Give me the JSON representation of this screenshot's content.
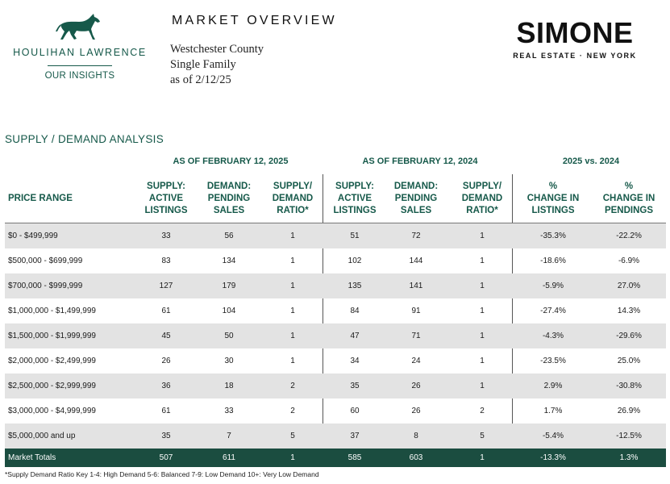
{
  "brand_left": {
    "name": "HOULIHAN LAWRENCE",
    "tagline": "OUR INSIGHTS"
  },
  "brand_right": {
    "name": "SIMONE",
    "subtitle": "REAL ESTATE · NEW YORK"
  },
  "header": {
    "title": "MARKET OVERVIEW",
    "county": "Westchester County",
    "property_type": "Single Family",
    "as_of": "as of  2/12/25"
  },
  "section_title": "SUPPLY / DEMAND ANALYSIS",
  "groups": {
    "current": "AS OF FEBRUARY 12, 2025",
    "prior": "AS OF FEBRUARY 12, 2024",
    "compare": "2025 vs. 2024"
  },
  "columns": {
    "range": "PRICE RANGE",
    "supply": "SUPPLY:\nACTIVE\nLISTINGS",
    "demand": "DEMAND:\nPENDING\nSALES",
    "ratio": "SUPPLY/\nDEMAND\nRATIO*",
    "supply_prior": "SUPPLY:\nACTIVE\nLISTINGS",
    "demand_prior": "DEMAND:\nPENDING\nSALES",
    "ratio_prior": "SUPPLY/\nDEMAND\nRATIO*",
    "chg_listings": "%\nCHANGE IN\nLISTINGS",
    "chg_pendings": "%\nCHANGE IN\nPENDINGS"
  },
  "rows": [
    {
      "range": "$0 - $499,999",
      "s25": "33",
      "d25": "56",
      "r25": "1",
      "s24": "51",
      "d24": "72",
      "r24": "1",
      "cl": "-35.3%",
      "cp": "-22.2%"
    },
    {
      "range": "$500,000 - $699,999",
      "s25": "83",
      "d25": "134",
      "r25": "1",
      "s24": "102",
      "d24": "144",
      "r24": "1",
      "cl": "-18.6%",
      "cp": "-6.9%"
    },
    {
      "range": "$700,000 - $999,999",
      "s25": "127",
      "d25": "179",
      "r25": "1",
      "s24": "135",
      "d24": "141",
      "r24": "1",
      "cl": "-5.9%",
      "cp": "27.0%"
    },
    {
      "range": "$1,000,000 - $1,499,999",
      "s25": "61",
      "d25": "104",
      "r25": "1",
      "s24": "84",
      "d24": "91",
      "r24": "1",
      "cl": "-27.4%",
      "cp": "14.3%"
    },
    {
      "range": "$1,500,000 - $1,999,999",
      "s25": "45",
      "d25": "50",
      "r25": "1",
      "s24": "47",
      "d24": "71",
      "r24": "1",
      "cl": "-4.3%",
      "cp": "-29.6%"
    },
    {
      "range": "$2,000,000 - $2,499,999",
      "s25": "26",
      "d25": "30",
      "r25": "1",
      "s24": "34",
      "d24": "24",
      "r24": "1",
      "cl": "-23.5%",
      "cp": "25.0%"
    },
    {
      "range": "$2,500,000 - $2,999,999",
      "s25": "36",
      "d25": "18",
      "r25": "2",
      "s24": "35",
      "d24": "26",
      "r24": "1",
      "cl": "2.9%",
      "cp": "-30.8%"
    },
    {
      "range": "$3,000,000 - $4,999,999",
      "s25": "61",
      "d25": "33",
      "r25": "2",
      "s24": "60",
      "d24": "26",
      "r24": "2",
      "cl": "1.7%",
      "cp": "26.9%"
    },
    {
      "range": "$5,000,000 and up",
      "s25": "35",
      "d25": "7",
      "r25": "5",
      "s24": "37",
      "d24": "8",
      "r24": "5",
      "cl": "-5.4%",
      "cp": "-12.5%"
    }
  ],
  "totals": {
    "range": "Market Totals",
    "s25": "507",
    "d25": "611",
    "r25": "1",
    "s24": "585",
    "d24": "603",
    "r24": "1",
    "cl": "-13.3%",
    "cp": "1.3%"
  },
  "footnote": "*Supply Demand Ratio Key 1-4: High Demand 5-6: Balanced 7-9: Low Demand 10+: Very Low Demand",
  "colors": {
    "accent_green": "#16594a",
    "totals_bg": "#1b4d40",
    "row_shade": "#e3e3e3"
  }
}
